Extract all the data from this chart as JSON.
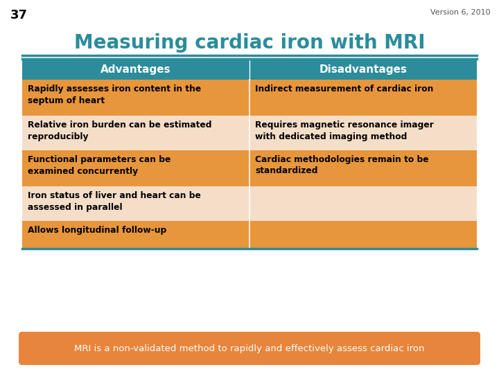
{
  "slide_number": "37",
  "version": "Version 6, 2010",
  "title": "Measuring cardiac iron with MRI",
  "title_color": "#2B8C9B",
  "header_bg": "#2B8C9B",
  "header_text_color": "#FFFFFF",
  "col_headers": [
    "Advantages",
    "Disadvantages"
  ],
  "row_odd_bg": "#E8963C",
  "row_even_bg": "#F5DEC8",
  "row_text_color": "#000000",
  "divider_color": "#2B8C9B",
  "footer_bg": "#E8853C",
  "footer_text": "MRI is a non-validated method to rapidly and effectively assess cardiac iron",
  "footer_text_color": "#FFFFFF",
  "table_rows": [
    [
      "Rapidly assesses iron content in the\nseptum of heart",
      "Indirect measurement of cardiac iron"
    ],
    [
      "Relative iron burden can be estimated\nreproducibly",
      "Requires magnetic resonance imager\nwith dedicated imaging method"
    ],
    [
      "Functional parameters can be\nexamined concurrently",
      "Cardiac methodologies remain to be\nstandardized"
    ],
    [
      "Iron status of liver and heart can be\nassessed in parallel",
      ""
    ],
    [
      "Allows longitudinal follow-up",
      ""
    ]
  ],
  "bg_color": "#FFFFFF"
}
